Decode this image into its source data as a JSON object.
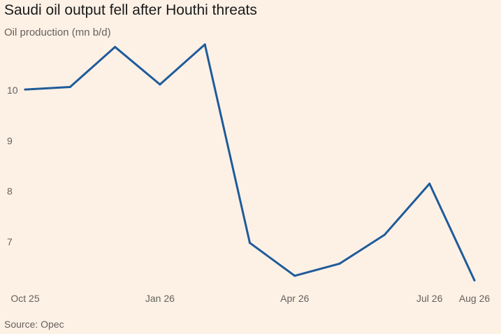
{
  "chart_data": {
    "type": "line",
    "title": "Saudi oil output fell after Houthi threats",
    "subtitle": "Oil production (mn b/d)",
    "source": "Source: Opec",
    "x_tick_labels": [
      "Oct 25",
      "Jan 26",
      "Apr 26",
      "Jul 26",
      "Aug 26"
    ],
    "x_tick_index": [
      0,
      3,
      6,
      9,
      10
    ],
    "y_ticks": [
      7,
      8,
      9,
      10
    ],
    "ylim": [
      6.05,
      10.95
    ],
    "grid": false,
    "colors": {
      "line": "#1f5b99",
      "background": "#fdf1e6"
    },
    "series": [
      {
        "values": [
          10.01,
          10.06,
          10.85,
          10.11,
          10.9,
          6.98,
          6.33,
          6.57,
          7.14,
          8.15,
          6.24
        ]
      }
    ]
  }
}
